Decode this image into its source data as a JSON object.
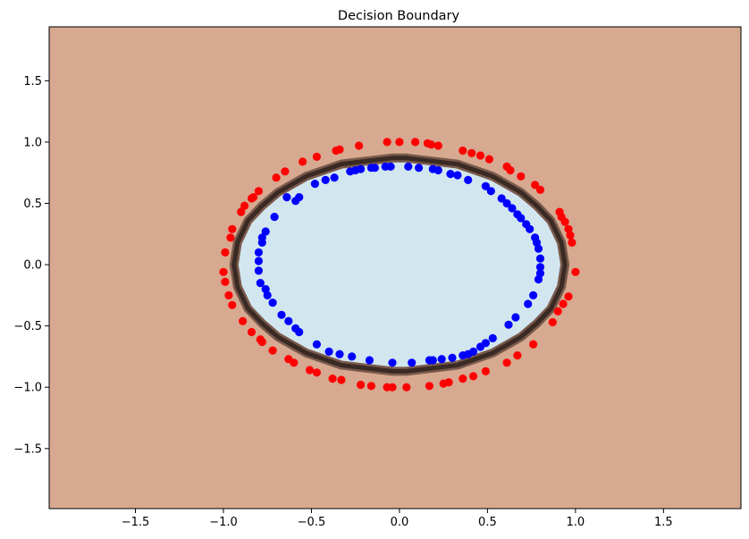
{
  "chart_data": {
    "type": "scatter",
    "title": "Decision Boundary",
    "xlabel": "",
    "ylabel": "",
    "xlim": [
      -1.99,
      1.94
    ],
    "ylim": [
      -1.99,
      1.94
    ],
    "xticks": [
      -1.5,
      -1.0,
      -0.5,
      0.0,
      0.5,
      1.0,
      1.5
    ],
    "yticks": [
      -1.5,
      -1.0,
      -0.5,
      0.0,
      0.5,
      1.0,
      1.5
    ],
    "xtick_labels": [
      "−1.5",
      "−1.0",
      "−0.5",
      "0.0",
      "0.5",
      "1.0",
      "1.5"
    ],
    "ytick_labels": [
      "−1.5",
      "−1.0",
      "−0.5",
      "0.0",
      "0.5",
      "1.0",
      "1.5"
    ],
    "grid": false,
    "colors": {
      "outer_region": "#d6a990",
      "inner_region": "#d2e6f0",
      "boundary": "#3a2a24",
      "class_outer": "#ff0000",
      "class_inner": "#0000ff"
    },
    "boundary": {
      "x": [
        0.04,
        0.33,
        0.53,
        0.69,
        0.78,
        0.86,
        0.92,
        0.94,
        0.92,
        0.86,
        0.78,
        0.69,
        0.53,
        0.33,
        0.04,
        -0.04,
        -0.33,
        -0.53,
        -0.69,
        -0.78,
        -0.86,
        -0.92,
        -0.94,
        -0.92,
        -0.86,
        -0.78,
        -0.69,
        -0.53,
        -0.33,
        -0.04
      ],
      "y": [
        0.87,
        0.82,
        0.72,
        0.59,
        0.48,
        0.36,
        0.18,
        0.0,
        -0.18,
        -0.36,
        -0.48,
        -0.59,
        -0.72,
        -0.82,
        -0.87,
        -0.87,
        -0.82,
        -0.72,
        -0.59,
        -0.48,
        -0.36,
        -0.18,
        0.0,
        0.18,
        0.36,
        0.48,
        0.59,
        0.72,
        0.82,
        0.87
      ]
    },
    "series": [
      {
        "x": [
          -0.07,
          0.0,
          0.09,
          0.16,
          0.18,
          0.22,
          0.36,
          0.41,
          0.46,
          0.51,
          0.61,
          0.63,
          0.69,
          0.77,
          0.8,
          0.91,
          0.92,
          0.94,
          0.96,
          0.97,
          0.98,
          1.0,
          0.96,
          0.93,
          0.9,
          0.87,
          0.76,
          0.67,
          0.61,
          0.49,
          0.42,
          0.36,
          0.28,
          0.25,
          0.17,
          0.04,
          -0.04,
          -0.07,
          -0.16,
          -0.22,
          -0.33,
          -0.38,
          -0.47,
          -0.51,
          -0.6,
          -0.63,
          -0.72,
          -0.78,
          -0.79,
          -0.84,
          -0.89,
          -0.95,
          -0.97,
          -0.99,
          -1.0,
          -0.99,
          -0.96,
          -0.95,
          -0.9,
          -0.88,
          -0.84,
          -0.83,
          -0.8,
          -0.7,
          -0.65,
          -0.55,
          -0.47,
          -0.36,
          -0.34,
          -0.23
        ],
        "y": [
          1.0,
          1.0,
          1.0,
          0.99,
          0.98,
          0.97,
          0.93,
          0.91,
          0.89,
          0.86,
          0.8,
          0.77,
          0.72,
          0.65,
          0.61,
          0.43,
          0.39,
          0.35,
          0.29,
          0.24,
          0.18,
          -0.06,
          -0.26,
          -0.32,
          -0.38,
          -0.47,
          -0.65,
          -0.74,
          -0.8,
          -0.87,
          -0.91,
          -0.93,
          -0.96,
          -0.97,
          -0.99,
          -1.0,
          -1.0,
          -1.0,
          -0.99,
          -0.98,
          -0.94,
          -0.93,
          -0.88,
          -0.86,
          -0.8,
          -0.77,
          -0.7,
          -0.63,
          -0.61,
          -0.55,
          -0.46,
          -0.33,
          -0.25,
          -0.14,
          -0.06,
          0.1,
          0.22,
          0.29,
          0.43,
          0.48,
          0.54,
          0.55,
          0.6,
          0.71,
          0.76,
          0.84,
          0.88,
          0.93,
          0.94,
          0.97
        ]
      },
      {
        "x": [
          -0.14,
          -0.08,
          -0.05,
          0.05,
          0.11,
          0.19,
          0.22,
          0.29,
          0.33,
          0.39,
          0.49,
          0.52,
          0.58,
          0.61,
          0.64,
          0.67,
          0.69,
          0.72,
          0.74,
          0.77,
          0.78,
          0.79,
          0.8,
          0.8,
          0.8,
          0.79,
          0.76,
          0.73,
          0.66,
          0.62,
          0.53,
          0.49,
          0.46,
          0.42,
          0.39,
          0.36,
          0.3,
          0.24,
          0.19,
          0.17,
          0.07,
          -0.04,
          -0.17,
          -0.27,
          -0.34,
          -0.4,
          -0.47,
          -0.57,
          -0.59,
          -0.63,
          -0.67,
          -0.72,
          -0.75,
          -0.76,
          -0.79,
          -0.8,
          -0.8,
          -0.8,
          -0.78,
          -0.78,
          -0.76,
          -0.71,
          -0.64,
          -0.57,
          -0.59,
          -0.48,
          -0.42,
          -0.37,
          -0.28,
          -0.25,
          -0.22,
          -0.16
        ],
        "y": [
          0.79,
          0.8,
          0.8,
          0.8,
          0.79,
          0.78,
          0.77,
          0.74,
          0.73,
          0.69,
          0.64,
          0.6,
          0.54,
          0.5,
          0.46,
          0.41,
          0.38,
          0.33,
          0.29,
          0.22,
          0.18,
          0.13,
          0.05,
          -0.02,
          -0.07,
          -0.12,
          -0.25,
          -0.32,
          -0.43,
          -0.49,
          -0.6,
          -0.64,
          -0.67,
          -0.71,
          -0.73,
          -0.74,
          -0.76,
          -0.77,
          -0.78,
          -0.78,
          -0.8,
          -0.8,
          -0.78,
          -0.75,
          -0.73,
          -0.71,
          -0.65,
          -0.55,
          -0.52,
          -0.46,
          -0.41,
          -0.31,
          -0.25,
          -0.2,
          -0.15,
          -0.05,
          0.03,
          0.1,
          0.18,
          0.22,
          0.27,
          0.39,
          0.55,
          0.55,
          0.52,
          0.66,
          0.69,
          0.71,
          0.76,
          0.77,
          0.78,
          0.79
        ]
      }
    ]
  }
}
